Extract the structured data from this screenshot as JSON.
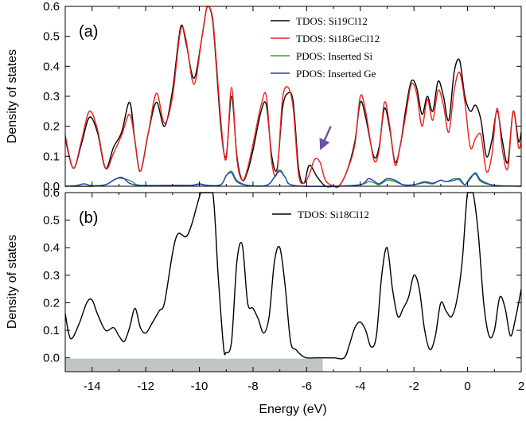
{
  "figure": {
    "xlabel": "Energy (eV)",
    "ylabel": "Density of states"
  },
  "chart_data": [
    {
      "type": "line",
      "panel_label": "(a)",
      "xlim": [
        -15,
        2
      ],
      "ylim": [
        0,
        0.6
      ],
      "xticks": [],
      "yticks": [
        0.0,
        0.1,
        0.2,
        0.3,
        0.4,
        0.5,
        0.6
      ],
      "ytick_labels": [
        "0.0",
        "0.1",
        "0.2",
        "0.3",
        "0.4",
        "0.5",
        "0.6"
      ],
      "legend_position": "top-right",
      "occupied_band_end": -4.8,
      "band_color": "#c0c6c6",
      "annotation": {
        "type": "arrow",
        "color": "#7050a0",
        "from": [
          -5.1,
          0.2
        ],
        "to": [
          -5.5,
          0.12
        ]
      },
      "series": [
        {
          "name": "TDOS: Si19Cl12",
          "color": "#000000",
          "x": [
            -15.0,
            -14.7,
            -14.4,
            -14.1,
            -13.8,
            -13.5,
            -13.2,
            -12.9,
            -12.6,
            -12.4,
            -12.2,
            -11.9,
            -11.6,
            -11.3,
            -11.0,
            -10.7,
            -10.5,
            -10.2,
            -9.9,
            -9.7,
            -9.5,
            -9.2,
            -9.0,
            -8.8,
            -8.6,
            -8.4,
            -8.2,
            -8.0,
            -7.7,
            -7.5,
            -7.3,
            -7.1,
            -6.9,
            -6.7,
            -6.5,
            -6.3,
            -6.1,
            -5.9,
            -5.6,
            -5.3,
            -5.0,
            -4.8,
            -4.5,
            -4.2,
            -4.0,
            -3.8,
            -3.5,
            -3.3,
            -3.1,
            -2.9,
            -2.7,
            -2.5,
            -2.3,
            -2.1,
            -1.9,
            -1.7,
            -1.5,
            -1.3,
            -1.1,
            -0.9,
            -0.7,
            -0.5,
            -0.3,
            -0.1,
            0.1,
            0.3,
            0.5,
            0.7,
            0.9,
            1.1,
            1.3,
            1.5,
            1.7,
            1.9,
            2.0
          ],
          "y": [
            0.16,
            0.06,
            0.14,
            0.23,
            0.18,
            0.06,
            0.13,
            0.18,
            0.28,
            0.15,
            0.05,
            0.18,
            0.28,
            0.2,
            0.32,
            0.53,
            0.48,
            0.36,
            0.5,
            0.6,
            0.55,
            0.2,
            0.1,
            0.3,
            0.1,
            0.02,
            0.05,
            0.12,
            0.25,
            0.27,
            0.1,
            0.06,
            0.26,
            0.31,
            0.28,
            0.06,
            0.01,
            0.07,
            0.03,
            0.0,
            0.0,
            0.0,
            0.05,
            0.15,
            0.28,
            0.23,
            0.1,
            0.13,
            0.26,
            0.19,
            0.08,
            0.14,
            0.26,
            0.35,
            0.33,
            0.24,
            0.3,
            0.25,
            0.35,
            0.3,
            0.22,
            0.38,
            0.42,
            0.3,
            0.25,
            0.27,
            0.22,
            0.1,
            0.15,
            0.25,
            0.15,
            0.08,
            0.25,
            0.15,
            0.18
          ]
        },
        {
          "name": "TDOS: Si18GeCl12",
          "color": "#e8201c",
          "x": [
            -15.0,
            -14.7,
            -14.4,
            -14.1,
            -13.8,
            -13.5,
            -13.2,
            -12.9,
            -12.6,
            -12.4,
            -12.2,
            -11.9,
            -11.6,
            -11.3,
            -11.0,
            -10.7,
            -10.5,
            -10.2,
            -9.9,
            -9.7,
            -9.5,
            -9.2,
            -9.0,
            -8.8,
            -8.6,
            -8.4,
            -8.2,
            -8.0,
            -7.7,
            -7.5,
            -7.3,
            -7.1,
            -6.9,
            -6.7,
            -6.5,
            -6.3,
            -6.1,
            -5.9,
            -5.7,
            -5.5,
            -5.3,
            -5.0,
            -4.8,
            -4.5,
            -4.2,
            -4.0,
            -3.8,
            -3.5,
            -3.3,
            -3.1,
            -2.9,
            -2.7,
            -2.5,
            -2.3,
            -2.1,
            -1.9,
            -1.7,
            -1.5,
            -1.3,
            -1.1,
            -0.9,
            -0.7,
            -0.5,
            -0.3,
            -0.1,
            0.1,
            0.3,
            0.5,
            0.7,
            0.9,
            1.1,
            1.3,
            1.5,
            1.7,
            1.9,
            2.0
          ],
          "y": [
            0.17,
            0.06,
            0.15,
            0.25,
            0.19,
            0.06,
            0.11,
            0.17,
            0.24,
            0.15,
            0.05,
            0.18,
            0.31,
            0.21,
            0.3,
            0.52,
            0.49,
            0.34,
            0.5,
            0.6,
            0.56,
            0.22,
            0.09,
            0.33,
            0.09,
            0.02,
            0.06,
            0.14,
            0.27,
            0.3,
            0.08,
            0.05,
            0.29,
            0.33,
            0.26,
            0.04,
            0.01,
            0.04,
            0.09,
            0.08,
            0.02,
            0.0,
            0.0,
            0.05,
            0.14,
            0.3,
            0.25,
            0.09,
            0.12,
            0.28,
            0.2,
            0.07,
            0.14,
            0.24,
            0.34,
            0.31,
            0.2,
            0.29,
            0.22,
            0.32,
            0.27,
            0.18,
            0.32,
            0.38,
            0.28,
            0.13,
            0.16,
            0.17,
            0.05,
            0.1,
            0.26,
            0.12,
            0.06,
            0.25,
            0.13,
            0.15
          ]
        },
        {
          "name": "PDOS: Inserted Si",
          "color": "#2ea02c",
          "x": [
            -15.0,
            -14.0,
            -13.5,
            -13.1,
            -12.8,
            -12.5,
            -12.2,
            -11.0,
            -10.3,
            -10.0,
            -9.7,
            -9.2,
            -9.0,
            -8.8,
            -8.6,
            -8.2,
            -7.5,
            -7.2,
            -7.0,
            -6.8,
            -6.5,
            -5.0,
            -4.0,
            -3.7,
            -3.5,
            -3.3,
            -3.0,
            -2.7,
            -2.4,
            -2.0,
            -1.6,
            -1.3,
            -1.0,
            -0.8,
            -0.5,
            -0.3,
            -0.1,
            0.1,
            0.3,
            0.5,
            1.0,
            2.0
          ],
          "y": [
            0.0,
            0.0,
            0.005,
            0.025,
            0.025,
            0.015,
            0.003,
            0.003,
            0.003,
            0.006,
            0.003,
            0.005,
            0.035,
            0.05,
            0.02,
            0.003,
            0.003,
            0.03,
            0.055,
            0.03,
            0.003,
            0.0,
            0.005,
            0.015,
            0.012,
            0.005,
            0.02,
            0.015,
            0.005,
            0.005,
            0.012,
            0.008,
            0.02,
            0.015,
            0.025,
            0.02,
            0.005,
            0.03,
            0.04,
            0.015,
            0.003,
            0.0
          ]
        },
        {
          "name": "PDOS: Inserted Ge",
          "color": "#1f3fc8",
          "x": [
            -15.0,
            -14.6,
            -14.3,
            -14.0,
            -13.5,
            -13.2,
            -12.9,
            -12.6,
            -12.2,
            -11.0,
            -10.3,
            -10.0,
            -9.7,
            -9.2,
            -9.0,
            -8.8,
            -8.6,
            -8.2,
            -7.5,
            -7.2,
            -7.0,
            -6.8,
            -6.5,
            -5.0,
            -4.0,
            -3.7,
            -3.5,
            -3.3,
            -3.0,
            -2.7,
            -2.4,
            -2.0,
            -1.6,
            -1.3,
            -1.0,
            -0.8,
            -0.5,
            -0.3,
            -0.1,
            0.1,
            0.3,
            0.5,
            1.0,
            2.0
          ],
          "y": [
            0.0,
            0.002,
            0.008,
            0.002,
            0.005,
            0.02,
            0.03,
            0.01,
            0.003,
            0.003,
            0.003,
            0.008,
            0.003,
            0.005,
            0.035,
            0.045,
            0.015,
            0.003,
            0.003,
            0.03,
            0.05,
            0.03,
            0.003,
            0.0,
            0.005,
            0.025,
            0.018,
            0.008,
            0.025,
            0.02,
            0.005,
            0.005,
            0.015,
            0.01,
            0.02,
            0.015,
            0.02,
            0.025,
            0.005,
            0.025,
            0.045,
            0.02,
            0.003,
            0.0
          ]
        }
      ]
    },
    {
      "type": "line",
      "panel_label": "(b)",
      "xlim": [
        -15,
        2
      ],
      "ylim": [
        -0.05,
        0.6
      ],
      "xticks": [
        -14,
        -12,
        -10,
        -8,
        -6,
        -4,
        -2,
        0,
        2
      ],
      "xtick_labels": [
        "-14",
        "-12",
        "-10",
        "-8",
        "-6",
        "-4",
        "-2",
        "0",
        "2"
      ],
      "yticks": [
        0.0,
        0.1,
        0.2,
        0.3,
        0.4,
        0.5,
        0.6
      ],
      "ytick_labels": [
        "0.0",
        "0.1",
        "0.2",
        "0.3",
        "0.4",
        "0.5",
        "0.6"
      ],
      "legend_position": "top-right",
      "occupied_band_end": -5.4,
      "band_color": "#c0c6c6",
      "series": [
        {
          "name": "TDOS: Si18Cl12",
          "color": "#000000",
          "x": [
            -15.0,
            -14.8,
            -14.5,
            -14.2,
            -14.0,
            -13.8,
            -13.5,
            -13.2,
            -13.0,
            -12.8,
            -12.6,
            -12.4,
            -12.2,
            -12.0,
            -11.8,
            -11.5,
            -11.3,
            -11.0,
            -10.8,
            -10.5,
            -10.3,
            -10.1,
            -9.95,
            -9.9,
            -9.8,
            -9.5,
            -9.3,
            -9.1,
            -9.0,
            -8.8,
            -8.6,
            -8.4,
            -8.2,
            -8.0,
            -7.8,
            -7.6,
            -7.4,
            -7.2,
            -7.0,
            -6.8,
            -6.6,
            -6.4,
            -6.2,
            -6.0,
            -5.6,
            -5.0,
            -4.6,
            -4.4,
            -4.2,
            -4.0,
            -3.8,
            -3.6,
            -3.4,
            -3.2,
            -3.0,
            -2.8,
            -2.6,
            -2.4,
            -2.2,
            -2.0,
            -1.8,
            -1.6,
            -1.4,
            -1.2,
            -1.0,
            -0.8,
            -0.6,
            -0.4,
            -0.2,
            0.0,
            0.2,
            0.4,
            0.6,
            0.8,
            1.0,
            1.2,
            1.4,
            1.6,
            1.8,
            2.0
          ],
          "y": [
            0.16,
            0.07,
            0.12,
            0.2,
            0.21,
            0.16,
            0.1,
            0.11,
            0.08,
            0.06,
            0.11,
            0.18,
            0.11,
            0.09,
            0.12,
            0.17,
            0.2,
            0.38,
            0.45,
            0.44,
            0.48,
            0.55,
            0.6,
            0.6,
            0.6,
            0.6,
            0.3,
            0.04,
            0.02,
            0.06,
            0.35,
            0.41,
            0.2,
            0.18,
            0.14,
            0.09,
            0.15,
            0.35,
            0.4,
            0.26,
            0.06,
            0.03,
            0.01,
            0.0,
            0.0,
            0.0,
            0.0,
            0.05,
            0.11,
            0.13,
            0.1,
            0.04,
            0.08,
            0.3,
            0.4,
            0.25,
            0.15,
            0.18,
            0.22,
            0.3,
            0.25,
            0.1,
            0.03,
            0.08,
            0.2,
            0.17,
            0.15,
            0.21,
            0.35,
            0.6,
            0.6,
            0.45,
            0.2,
            0.08,
            0.1,
            0.22,
            0.18,
            0.08,
            0.15,
            0.25
          ]
        }
      ]
    }
  ]
}
